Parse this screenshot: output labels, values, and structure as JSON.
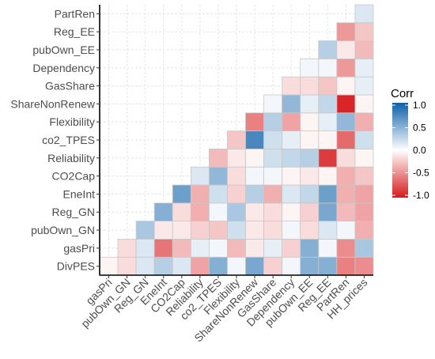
{
  "chart_data": {
    "type": "heatmap",
    "variables": [
      "DivPES",
      "gasPri",
      "pubOwn_GN",
      "Reg_GN",
      "EneInt",
      "CO2Cap",
      "Reliability",
      "co2_TPES",
      "Flexibility",
      "ShareNonRenew",
      "GasShare",
      "Dependency",
      "pubOwn_EE",
      "Reg_EE",
      "PartRen",
      "HH_prices"
    ],
    "row_labels": [
      "DivPES",
      "gasPri",
      "pubOwn_GN",
      "Reg_GN",
      "EneInt",
      "CO2Cap",
      "Reliability",
      "co2_TPES",
      "Flexibility",
      "ShareNonRenew",
      "GasShare",
      "Dependency",
      "pubOwn_EE",
      "Reg_EE",
      "PartRen"
    ],
    "column_labels": [
      "gasPri",
      "pubOwn_GN",
      "Reg_GN",
      "EneInt",
      "CO2Cap",
      "Reliability",
      "co2_TPES",
      "Flexibility",
      "ShareNonRenew",
      "GasShare",
      "Dependency",
      "pubOwn_EE",
      "Reg_EE",
      "PartRen",
      "HH_prices"
    ],
    "values": {
      "DivPES": [
        -0.05,
        -0.15,
        0.15,
        0.3,
        0.15,
        -0.4,
        0.5,
        0.05,
        0.55,
        -0.2,
        0.05,
        0.5,
        0.5,
        -0.55,
        -0.5
      ],
      "gasPri": [
        null,
        -0.15,
        0.15,
        -0.6,
        -0.3,
        0.1,
        0.05,
        -0.3,
        -0.1,
        0.1,
        -0.2,
        0.5,
        0.05,
        -0.5,
        0.35
      ],
      "pubOwn_GN": [
        null,
        null,
        0.35,
        -0.1,
        -0.1,
        -0.2,
        -0.25,
        0.2,
        -0.1,
        -0.15,
        0.05,
        -0.15,
        0.15,
        0.05,
        -0.35
      ],
      "Reg_GN": [
        null,
        null,
        null,
        0.5,
        -0.15,
        -0.35,
        0.05,
        0.35,
        -0.1,
        -0.15,
        -0.05,
        -0.2,
        0.55,
        -0.3,
        -0.4
      ],
      "EneInt": [
        null,
        null,
        null,
        null,
        0.6,
        -0.35,
        0.2,
        -0.2,
        0.3,
        -0.35,
        0.15,
        0.25,
        0.6,
        -0.35,
        -0.4
      ],
      "CO2Cap": [
        null,
        null,
        null,
        null,
        null,
        0.15,
        0.45,
        -0.15,
        0.05,
        0.05,
        -0.05,
        -0.1,
        -0.05,
        -0.35,
        -0.25
      ],
      "Reliability": [
        null,
        null,
        null,
        null,
        null,
        null,
        -0.3,
        -0.1,
        -0.05,
        0.2,
        0.25,
        0.3,
        -0.85,
        -0.15,
        -0.05
      ],
      "co2_TPES": [
        null,
        null,
        null,
        null,
        null,
        null,
        null,
        -0.25,
        0.75,
        0.2,
        0.1,
        -0.05,
        -0.05,
        -0.65,
        0.2
      ],
      "Flexibility": [
        null,
        null,
        null,
        null,
        null,
        null,
        null,
        null,
        -0.55,
        0.3,
        -0.4,
        -0.05,
        0.1,
        0.45,
        -0.35
      ],
      "ShareNonRenew": [
        null,
        null,
        null,
        null,
        null,
        null,
        null,
        null,
        null,
        0.05,
        0.45,
        0.1,
        0.25,
        -0.95,
        -0.05
      ],
      "GasShare": [
        null,
        null,
        null,
        null,
        null,
        null,
        null,
        null,
        null,
        null,
        -0.15,
        -0.15,
        -0.25,
        -0.05,
        0.1
      ],
      "Dependency": [
        null,
        null,
        null,
        null,
        null,
        null,
        null,
        null,
        null,
        null,
        null,
        0.05,
        0.05,
        -0.45,
        0.1
      ],
      "pubOwn_EE": [
        null,
        null,
        null,
        null,
        null,
        null,
        null,
        null,
        null,
        null,
        null,
        null,
        0.3,
        -0.1,
        -0.3
      ],
      "Reg_EE": [
        null,
        null,
        null,
        null,
        null,
        null,
        null,
        null,
        null,
        null,
        null,
        null,
        null,
        -0.45,
        -0.25
      ],
      "PartRen": [
        null,
        null,
        null,
        null,
        null,
        null,
        null,
        null,
        null,
        null,
        null,
        null,
        null,
        null,
        0.15
      ]
    },
    "legend": {
      "title": "Corr",
      "ticks": [
        1.0,
        0.5,
        0.0,
        -0.5,
        -1.0
      ],
      "tick_labels": [
        "1.0",
        "0.5",
        "0.0",
        "-0.5",
        "-1.0"
      ],
      "range": [
        -1,
        1
      ]
    },
    "colors": {
      "low": "#d7191c",
      "mid": "#ffffff",
      "high": "#0c5fa8"
    },
    "grid": true,
    "legend_position": "right"
  }
}
